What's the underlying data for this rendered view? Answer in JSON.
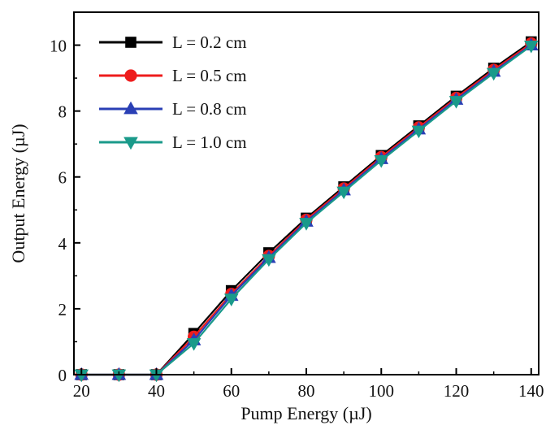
{
  "chart_data": {
    "type": "line",
    "title": "",
    "xlabel": "Pump Energy (µJ)",
    "ylabel": "Output Energy (µJ)",
    "xlim": [
      18,
      142
    ],
    "ylim": [
      0,
      11
    ],
    "x_ticks": [
      20,
      40,
      60,
      80,
      100,
      120,
      140
    ],
    "y_ticks": [
      0,
      2,
      4,
      6,
      8,
      10
    ],
    "grid": false,
    "legend_position": "top-left",
    "x": [
      20,
      30,
      40,
      50,
      60,
      70,
      80,
      90,
      100,
      110,
      120,
      130,
      140
    ],
    "series": [
      {
        "name": "L = 0.2 cm",
        "color": "#000000",
        "marker": "square",
        "values": [
          0,
          0,
          0,
          1.25,
          2.55,
          3.7,
          4.75,
          5.7,
          6.65,
          7.55,
          8.45,
          9.3,
          10.1
        ]
      },
      {
        "name": "L = 0.5 cm",
        "color": "#ee1c1c",
        "marker": "circle",
        "values": [
          0,
          0,
          0,
          1.15,
          2.45,
          3.6,
          4.7,
          5.65,
          6.6,
          7.5,
          8.4,
          9.25,
          10.05
        ]
      },
      {
        "name": "L = 0.8 cm",
        "color": "#2a3fb5",
        "marker": "triangle-up",
        "values": [
          0,
          0,
          0,
          1.05,
          2.4,
          3.55,
          4.65,
          5.6,
          6.55,
          7.45,
          8.35,
          9.2,
          10.0
        ]
      },
      {
        "name": "L = 1.0 cm",
        "color": "#1a9a8a",
        "marker": "triangle-down",
        "values": [
          0,
          0,
          0,
          0.95,
          2.3,
          3.5,
          4.6,
          5.55,
          6.5,
          7.4,
          8.3,
          9.15,
          9.98
        ]
      }
    ]
  }
}
